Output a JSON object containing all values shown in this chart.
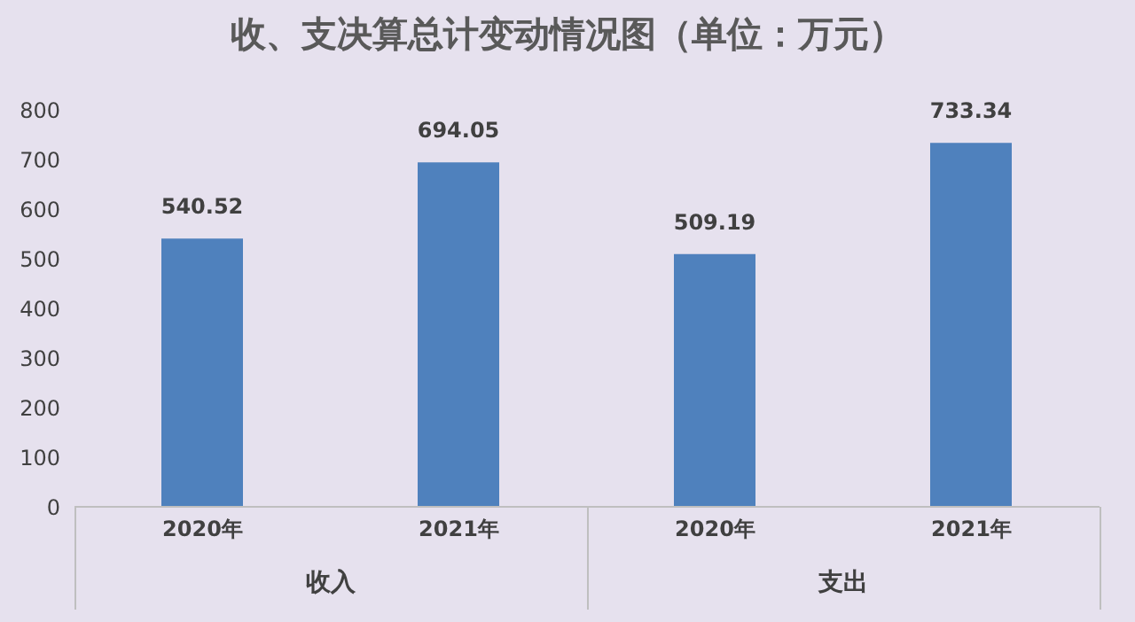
{
  "chart_data": {
    "type": "bar",
    "title": "收、支决算总计变动情况图（单位：万元）",
    "categories": [
      "2020年",
      "2021年",
      "2020年",
      "2021年"
    ],
    "values": [
      540.52,
      694.05,
      509.19,
      733.34
    ],
    "color": "#4f81bd",
    "ylim": [
      0,
      800
    ],
    "yticks": [
      0,
      100,
      200,
      300,
      400,
      500,
      600,
      700,
      800
    ],
    "data_labels": true,
    "annotations": [
      "收入",
      "支出"
    ]
  }
}
